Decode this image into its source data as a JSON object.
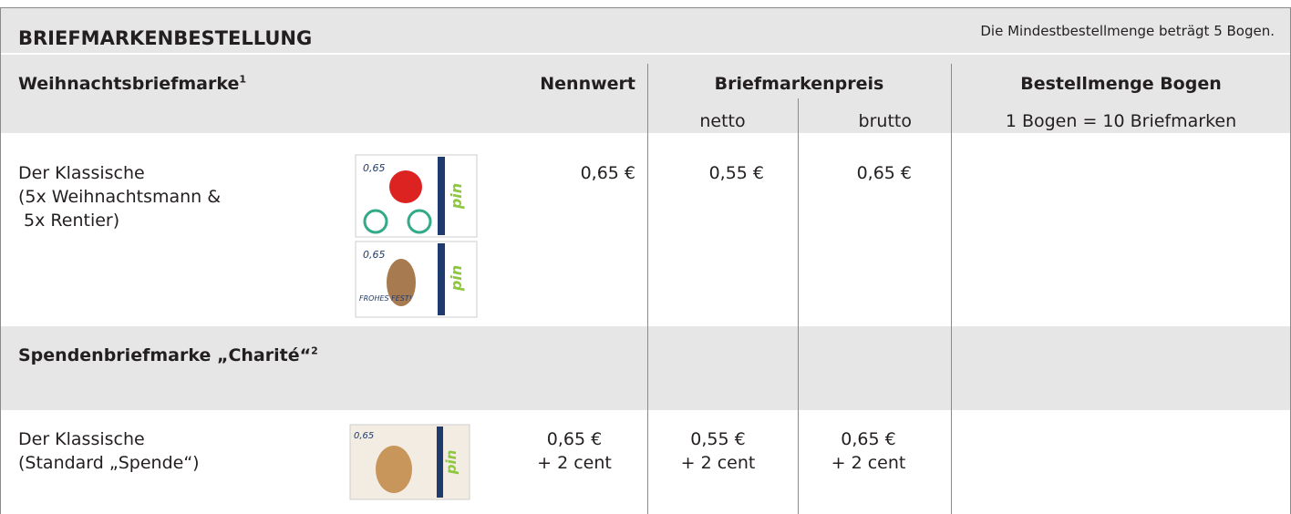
{
  "header": {
    "title": "BRIEFMARKENBESTELLUNG",
    "note": "Die Mindestbestellmenge beträgt 5 Bogen."
  },
  "columns": {
    "product": {
      "name": "Weihnachtsbriefmarke",
      "footnote": "1"
    },
    "nennwert": "Nennwert",
    "preis": "Briefmarkenpreis",
    "netto": "netto",
    "brutto": "brutto",
    "menge": "Bestellmenge Bogen",
    "menge_note": "1 Bogen = 10 Briefmarken"
  },
  "rows": [
    {
      "label": [
        "Der Klassische",
        "(5x Weihnachtsmann &",
        " 5x Rentier)"
      ],
      "nennwert": [
        "0,65 €"
      ],
      "netto": [
        "0,55 €"
      ],
      "brutto": [
        "0,65 €"
      ]
    },
    {
      "label": [
        "Der Klassische",
        "(Standard „Spende“)"
      ],
      "nennwert": [
        "0,65 €",
        "+ 2 cent"
      ],
      "netto": [
        "0,55 €",
        "+ 2 cent"
      ],
      "brutto": [
        "0,65 €",
        "+ 2 cent"
      ]
    }
  ],
  "section": {
    "name": "Spendenbriefmarke „Charité“",
    "footnote": "2"
  },
  "stamps": [
    {
      "value": "0,65",
      "brand": "pin"
    },
    {
      "value": "0,65",
      "text": "FROHES FEST!",
      "brand": "pin"
    },
    {
      "value": "0,65",
      "brand": "pin"
    }
  ]
}
